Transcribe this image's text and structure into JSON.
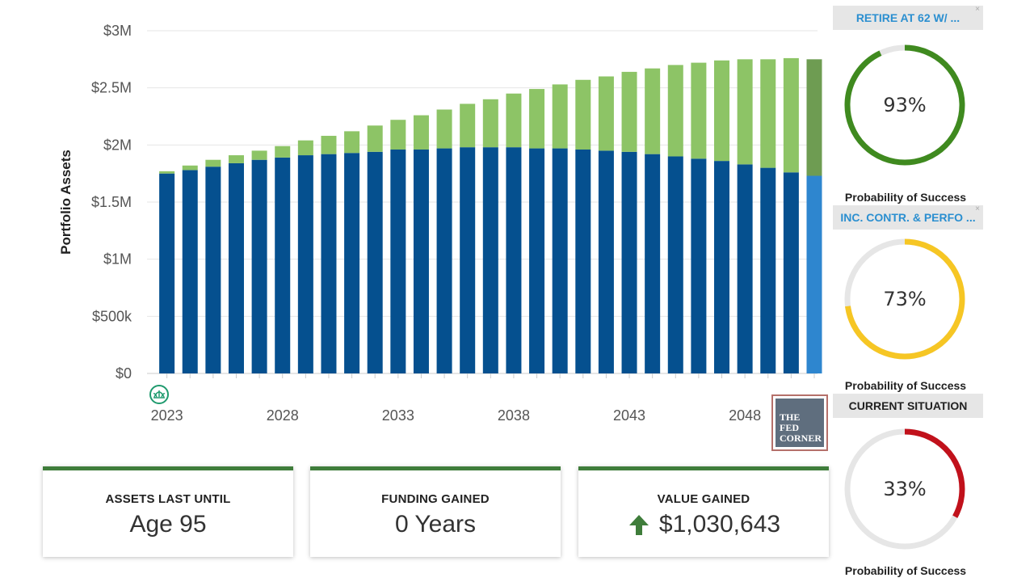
{
  "chart_data": {
    "type": "bar",
    "stacked": true,
    "ylabel": "Portfolio Assets",
    "ylim": [
      0,
      3000000
    ],
    "y_ticks": [
      {
        "value": 0,
        "label": "$0"
      },
      {
        "value": 500000,
        "label": "$500k"
      },
      {
        "value": 1000000,
        "label": "$1M"
      },
      {
        "value": 1500000,
        "label": "$1.5M"
      },
      {
        "value": 2000000,
        "label": "$2M"
      },
      {
        "value": 2500000,
        "label": "$2.5M"
      },
      {
        "value": 3000000,
        "label": "$3M"
      }
    ],
    "x_tick_labels": [
      "2023",
      "2028",
      "2033",
      "2038",
      "2043",
      "2048"
    ],
    "categories": [
      2023,
      2024,
      2025,
      2026,
      2027,
      2028,
      2029,
      2030,
      2031,
      2032,
      2033,
      2034,
      2035,
      2036,
      2037,
      2038,
      2039,
      2040,
      2041,
      2042,
      2043,
      2044,
      2045,
      2046,
      2047,
      2048,
      2049,
      2050,
      2051
    ],
    "series": [
      {
        "color": "#05508f",
        "highlight_color": "#2e86cf",
        "values": [
          1750000,
          1780000,
          1810000,
          1840000,
          1870000,
          1890000,
          1910000,
          1920000,
          1930000,
          1940000,
          1960000,
          1960000,
          1970000,
          1980000,
          1980000,
          1980000,
          1970000,
          1970000,
          1960000,
          1950000,
          1940000,
          1920000,
          1900000,
          1880000,
          1860000,
          1830000,
          1800000,
          1760000,
          1730000
        ]
      },
      {
        "color": "#8dc466",
        "highlight_color": "#6e9c52",
        "values": [
          20000,
          40000,
          60000,
          70000,
          80000,
          100000,
          130000,
          160000,
          190000,
          230000,
          260000,
          300000,
          340000,
          380000,
          420000,
          470000,
          520000,
          560000,
          610000,
          650000,
          700000,
          750000,
          800000,
          840000,
          880000,
          920000,
          950000,
          1000000,
          1020000
        ]
      }
    ],
    "grid": true,
    "legend": "none"
  },
  "colors": {
    "card_accent": "#3f7d3b",
    "gauge_green": "#3f8a1f",
    "gauge_yellow": "#f6c624",
    "gauge_red": "#c1111b",
    "gauge_track": "#e6e6e6",
    "scenario_blue": "#2b8fd0"
  },
  "logo": {
    "line1": "THE",
    "line2": "FED",
    "line3": "CORNER"
  },
  "cards": [
    {
      "label": "ASSETS LAST UNTIL",
      "value": "Age 95"
    },
    {
      "label": "FUNDING GAINED",
      "value": "0 Years"
    },
    {
      "label": "VALUE GAINED",
      "value": "$1,030,643",
      "icon": "arrow-up-icon"
    }
  ],
  "scenarios": [
    {
      "title": "RETIRE AT 62 W/ ...",
      "percent_label": "93%",
      "probability": 0.93,
      "caption": "Probability of Success",
      "close": "×"
    },
    {
      "title": "INC. CONTR. & PERFO ...",
      "percent_label": "73%",
      "probability": 0.73,
      "caption": "Probability of Success",
      "close": "×"
    },
    {
      "title": "CURRENT SITUATION",
      "percent_label": "33%",
      "probability": 0.33,
      "caption": "Probability of Success"
    }
  ]
}
